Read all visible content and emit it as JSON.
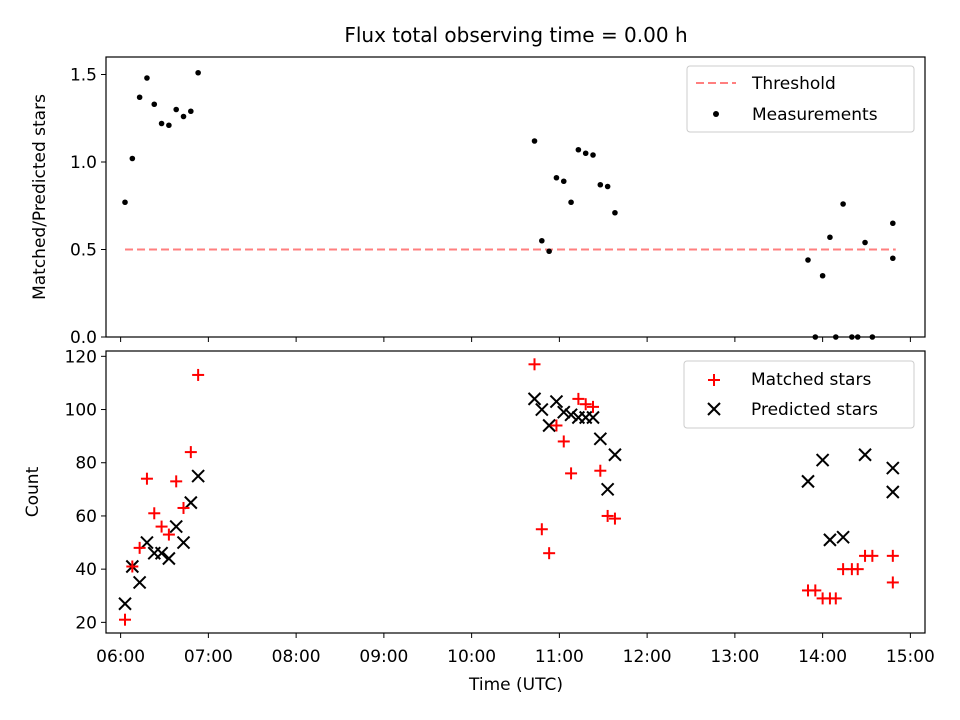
{
  "chart_data": [
    {
      "type": "scatter",
      "title": "Flux total observing time = 0.00 h",
      "xlabel": "",
      "ylabel": "Matched/Predicted stars",
      "xlim": [
        "05:50",
        "15:10"
      ],
      "ylim": [
        0,
        1.6
      ],
      "yticks": [
        "0.0",
        "0.5",
        "1.0",
        "1.5"
      ],
      "grid": false,
      "legend": "top-right",
      "threshold": {
        "name": "Threshold",
        "value": 0.5,
        "x_start": "06:03",
        "x_end": "14:50",
        "color": "#ff7f7f",
        "style": "dashed"
      },
      "series": [
        {
          "name": "Measurements",
          "color": "#000000",
          "marker": "dot",
          "points": [
            [
              "06:03",
              0.77
            ],
            [
              "06:08",
              1.02
            ],
            [
              "06:13",
              1.37
            ],
            [
              "06:18",
              1.48
            ],
            [
              "06:23",
              1.33
            ],
            [
              "06:28",
              1.22
            ],
            [
              "06:33",
              1.21
            ],
            [
              "06:38",
              1.3
            ],
            [
              "06:43",
              1.26
            ],
            [
              "06:48",
              1.29
            ],
            [
              "06:53",
              1.51
            ],
            [
              "10:43",
              1.12
            ],
            [
              "10:48",
              0.55
            ],
            [
              "10:53",
              0.49
            ],
            [
              "10:58",
              0.91
            ],
            [
              "11:03",
              0.89
            ],
            [
              "11:08",
              0.77
            ],
            [
              "11:13",
              1.07
            ],
            [
              "11:18",
              1.05
            ],
            [
              "11:23",
              1.04
            ],
            [
              "11:28",
              0.87
            ],
            [
              "11:33",
              0.86
            ],
            [
              "11:38",
              0.71
            ],
            [
              "13:50",
              0.44
            ],
            [
              "13:55",
              0.0
            ],
            [
              "14:00",
              0.35
            ],
            [
              "14:05",
              0.57
            ],
            [
              "14:09",
              0.0
            ],
            [
              "14:14",
              0.76
            ],
            [
              "14:20",
              0.0
            ],
            [
              "14:24",
              0.0
            ],
            [
              "14:29",
              0.54
            ],
            [
              "14:34",
              0.0
            ],
            [
              "14:48",
              0.65
            ],
            [
              "14:48",
              0.45
            ]
          ]
        }
      ]
    },
    {
      "type": "scatter",
      "title": "",
      "xlabel": "Time (UTC)",
      "ylabel": "Count",
      "xlim": [
        "05:50",
        "15:10"
      ],
      "ylim": [
        16,
        122
      ],
      "xticks": [
        "06:00",
        "07:00",
        "08:00",
        "09:00",
        "10:00",
        "11:00",
        "12:00",
        "13:00",
        "14:00",
        "15:00"
      ],
      "yticks": [
        "20",
        "40",
        "60",
        "80",
        "100",
        "120"
      ],
      "grid": false,
      "legend": "top-right",
      "series": [
        {
          "name": "Matched stars",
          "color": "#ff0000",
          "marker": "plus",
          "points": [
            [
              "06:03",
              21
            ],
            [
              "06:08",
              41
            ],
            [
              "06:13",
              48
            ],
            [
              "06:18",
              74
            ],
            [
              "06:23",
              61
            ],
            [
              "06:28",
              56
            ],
            [
              "06:33",
              53
            ],
            [
              "06:38",
              73
            ],
            [
              "06:43",
              63
            ],
            [
              "06:48",
              84
            ],
            [
              "06:53",
              113
            ],
            [
              "10:43",
              117
            ],
            [
              "10:48",
              55
            ],
            [
              "10:53",
              46
            ],
            [
              "10:58",
              94
            ],
            [
              "11:03",
              88
            ],
            [
              "11:08",
              76
            ],
            [
              "11:13",
              104
            ],
            [
              "11:18",
              102
            ],
            [
              "11:23",
              101
            ],
            [
              "11:28",
              77
            ],
            [
              "11:33",
              60
            ],
            [
              "11:38",
              59
            ],
            [
              "13:50",
              32
            ],
            [
              "13:55",
              32
            ],
            [
              "14:00",
              29
            ],
            [
              "14:05",
              29
            ],
            [
              "14:09",
              29
            ],
            [
              "14:14",
              40
            ],
            [
              "14:20",
              40
            ],
            [
              "14:24",
              40
            ],
            [
              "14:29",
              45
            ],
            [
              "14:34",
              45
            ],
            [
              "14:48",
              45
            ],
            [
              "14:48",
              35
            ]
          ]
        },
        {
          "name": "Predicted stars",
          "color": "#000000",
          "marker": "x",
          "points": [
            [
              "06:03",
              27
            ],
            [
              "06:08",
              41
            ],
            [
              "06:13",
              35
            ],
            [
              "06:18",
              50
            ],
            [
              "06:23",
              46
            ],
            [
              "06:28",
              46
            ],
            [
              "06:33",
              44
            ],
            [
              "06:38",
              56
            ],
            [
              "06:43",
              50
            ],
            [
              "06:48",
              65
            ],
            [
              "06:53",
              75
            ],
            [
              "10:43",
              104
            ],
            [
              "10:48",
              100
            ],
            [
              "10:53",
              94
            ],
            [
              "10:58",
              103
            ],
            [
              "11:03",
              99
            ],
            [
              "11:08",
              98
            ],
            [
              "11:13",
              97
            ],
            [
              "11:18",
              97
            ],
            [
              "11:23",
              97
            ],
            [
              "11:28",
              89
            ],
            [
              "11:33",
              70
            ],
            [
              "11:38",
              83
            ],
            [
              "13:50",
              73
            ],
            [
              "14:00",
              81
            ],
            [
              "14:05",
              51
            ],
            [
              "14:14",
              52
            ],
            [
              "14:29",
              83
            ],
            [
              "14:48",
              78
            ],
            [
              "14:48",
              69
            ]
          ]
        }
      ]
    }
  ]
}
